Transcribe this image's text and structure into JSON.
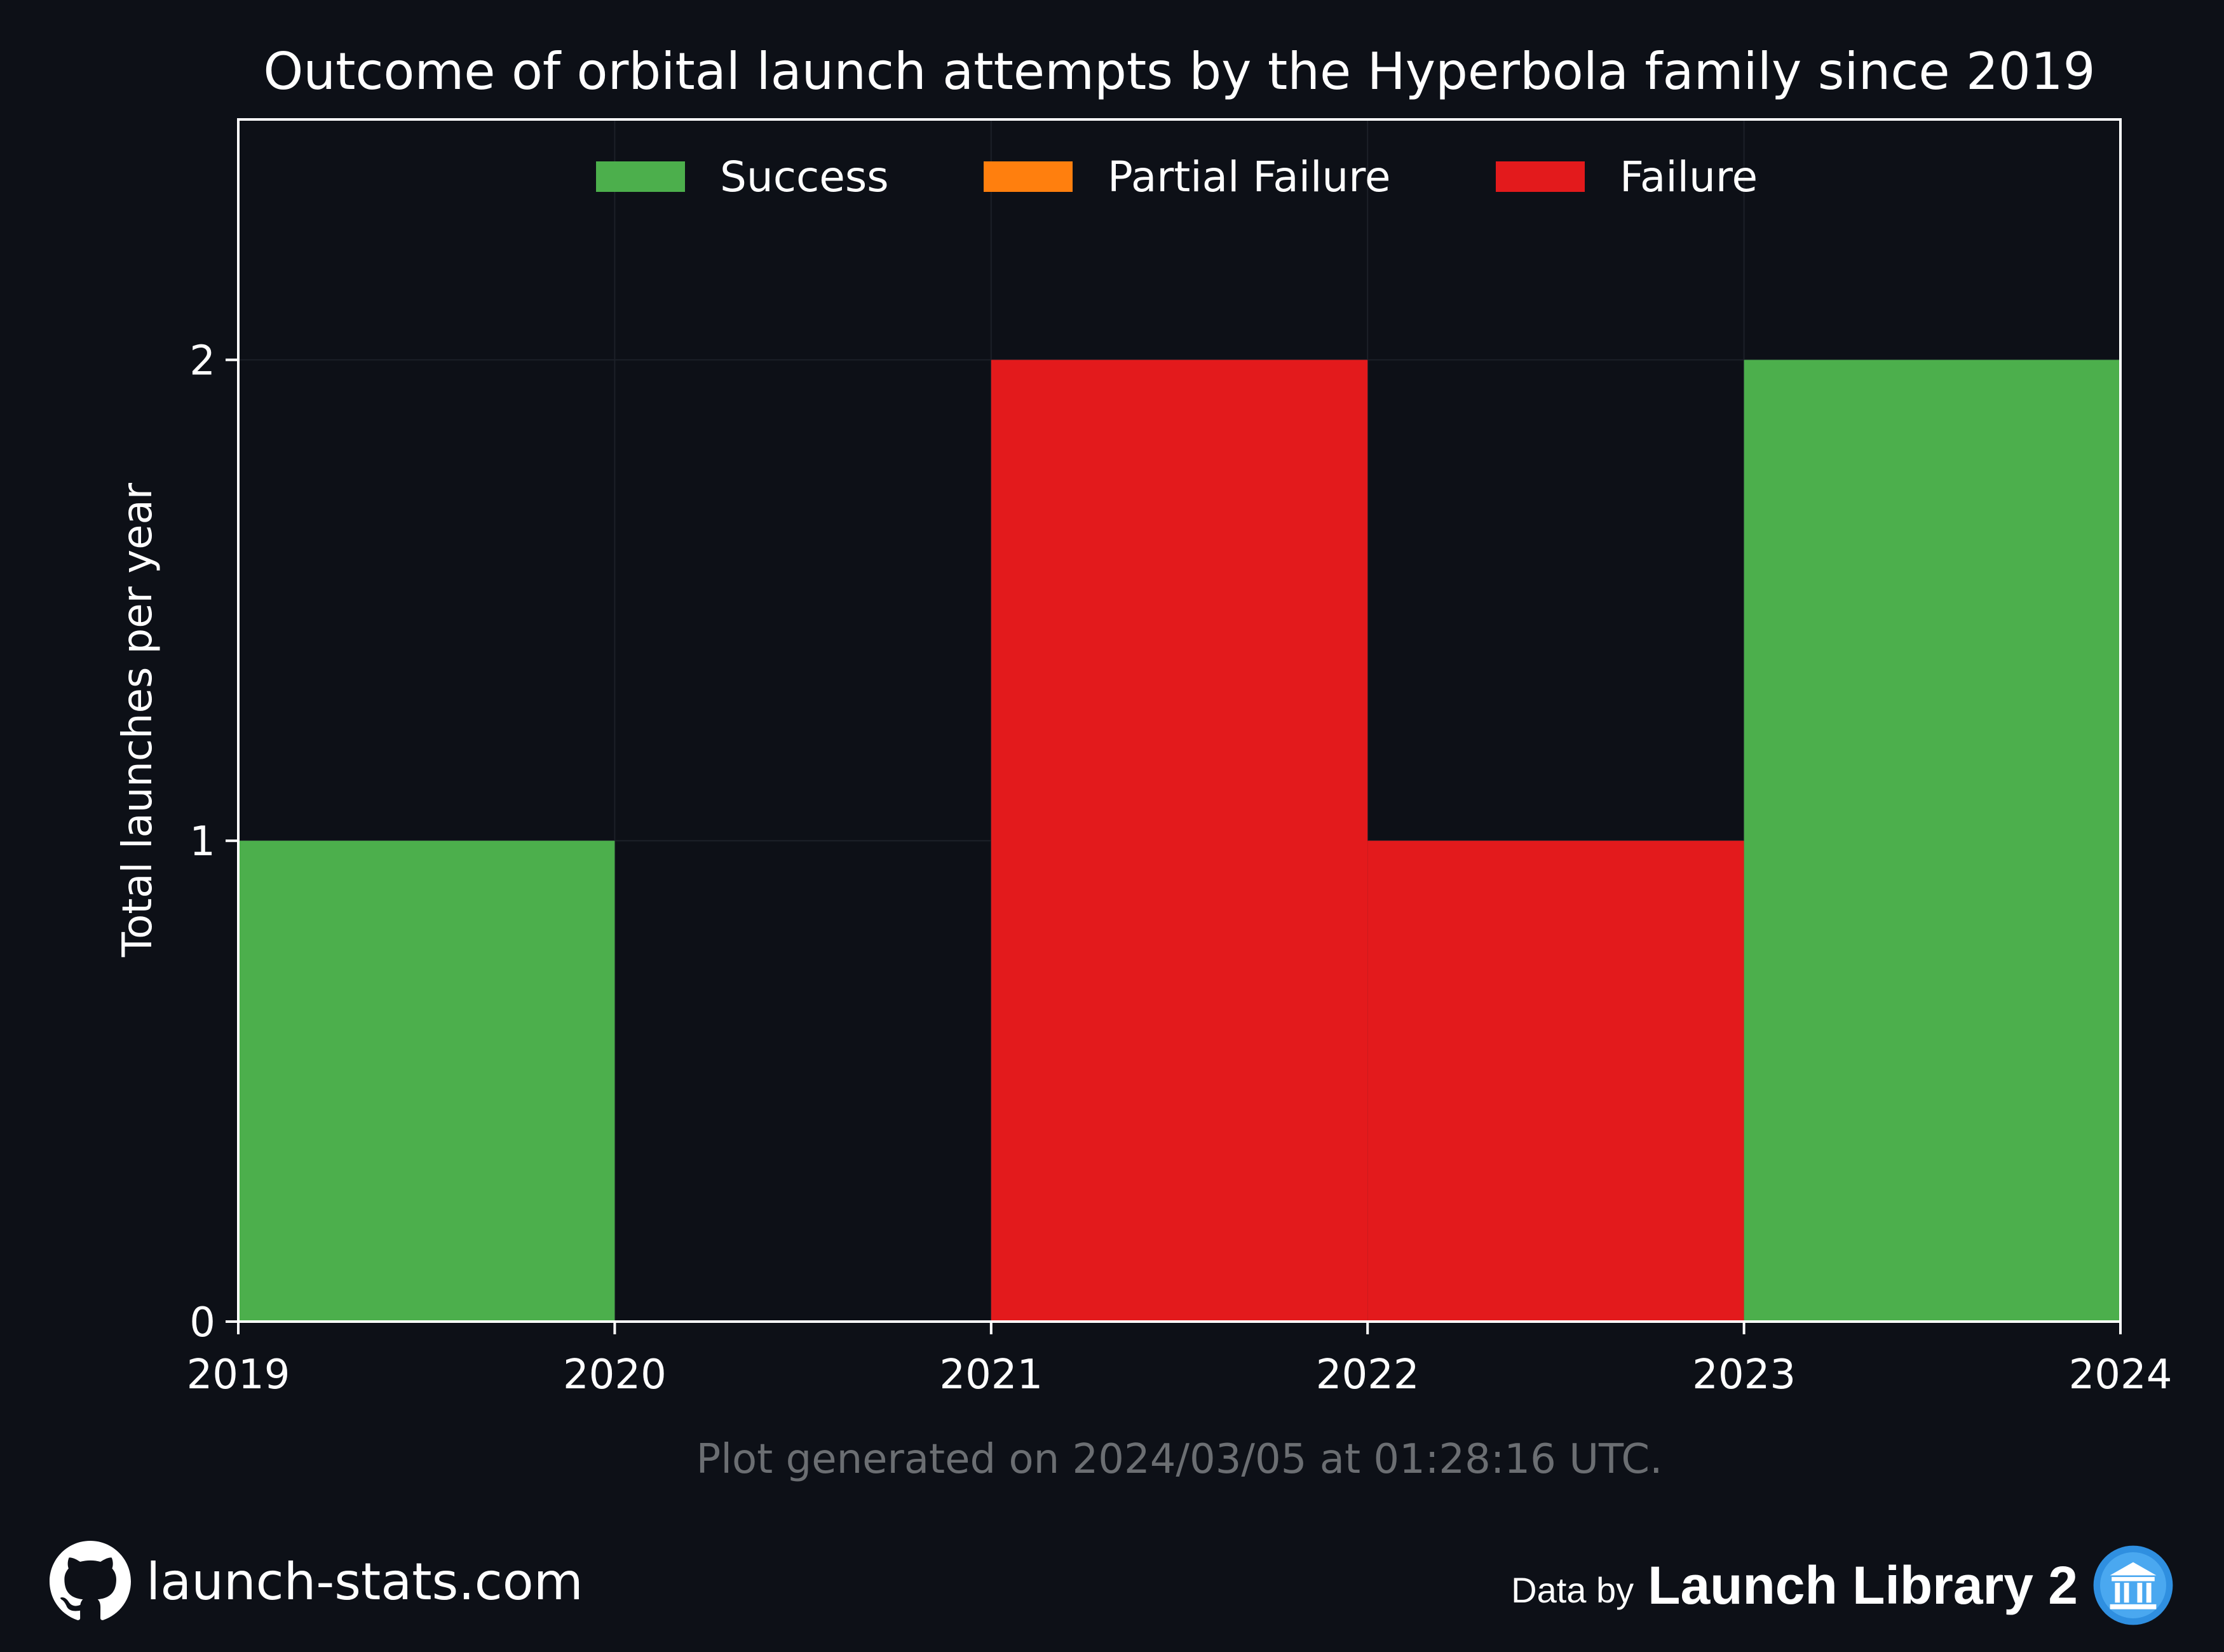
{
  "colors": {
    "background": "#0d1017",
    "axes_frame": "#ffffff",
    "grid": "#1c2028",
    "text": "#ffffff",
    "generated_text": "#6b6e72",
    "success": "#4caf4c",
    "partial_failure": "#ff7f0e",
    "failure": "#e31a1c",
    "ll2_logo": "#2f8fe0"
  },
  "chart_data": {
    "type": "bar",
    "title": "Outcome of orbital launch attempts by the Hyperbola family since 2019",
    "xlabel": "",
    "ylabel": "Total launches per year",
    "x_ticks": [
      "2019",
      "2020",
      "2021",
      "2022",
      "2023",
      "2024"
    ],
    "y_ticks": [
      "0",
      "1",
      "2"
    ],
    "xlim": [
      2019,
      2024
    ],
    "ylim": [
      0,
      2.5
    ],
    "grid": true,
    "legend_position": "top-center",
    "stacked": true,
    "bins": [
      [
        2019,
        2020
      ],
      [
        2020,
        2021
      ],
      [
        2021,
        2022
      ],
      [
        2022,
        2023
      ],
      [
        2023,
        2024
      ]
    ],
    "series": [
      {
        "name": "Success",
        "color_key": "success",
        "values": [
          1,
          0,
          0,
          0,
          2
        ]
      },
      {
        "name": "Partial Failure",
        "color_key": "partial_failure",
        "values": [
          0,
          0,
          0,
          0,
          0
        ]
      },
      {
        "name": "Failure",
        "color_key": "failure",
        "values": [
          0,
          0,
          2,
          1,
          0
        ]
      }
    ]
  },
  "footer": {
    "generated_note": "Plot generated on 2024/03/05 at 01:28:16 UTC.",
    "site": "launch-stats.com",
    "data_by": "Data by",
    "provider": "Launch Library 2",
    "github_icon": "github-icon",
    "provider_icon": "launch-library-logo-icon"
  }
}
